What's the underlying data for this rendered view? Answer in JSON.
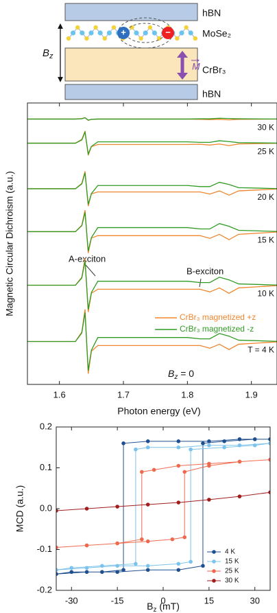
{
  "diagram": {
    "layers": [
      "hBN",
      "MoSe₂",
      "CrBr₃",
      "hBN"
    ],
    "field": {
      "base": "B",
      "sub": "z"
    },
    "magnetization": "M",
    "charges": [
      "+",
      "−"
    ]
  },
  "chart_data": [
    {
      "type": "line",
      "xlabel": "Photon energy (eV)",
      "ylabel": "Magnetic Circular Dichroism (a.u.)",
      "xlim": [
        1.55,
        1.94
      ],
      "ylim": [
        -0.5,
        10
      ],
      "xticks": [
        1.6,
        1.7,
        1.8,
        1.9
      ],
      "x": [
        1.55,
        1.6,
        1.625,
        1.635,
        1.64,
        1.645,
        1.65,
        1.66,
        1.7,
        1.75,
        1.8,
        1.82,
        1.835,
        1.85,
        1.865,
        1.88,
        1.95
      ],
      "curve_labels": [
        "30 K",
        "25 K",
        "20 K",
        "15 K",
        "10 K",
        "T = 4 K"
      ],
      "annotations": [
        "A-exciton",
        "B-exciton"
      ],
      "condition": {
        "base": "B",
        "sub": "z",
        "rest": " = 0"
      },
      "series": [
        {
          "name": "CrBr₃ magnetized +z",
          "color": "#f0862e",
          "curves": [
            [
              9.4,
              9.4,
              9.4,
              9.42,
              9.45,
              9.35,
              9.39,
              9.4,
              9.4,
              9.4,
              9.4,
              9.39,
              9.38,
              9.39,
              9.37,
              9.39,
              9.4
            ],
            [
              8.5,
              8.5,
              8.5,
              8.64,
              8.95,
              8.05,
              8.37,
              8.45,
              8.45,
              8.45,
              8.45,
              8.46,
              8.43,
              8.47,
              8.41,
              8.47,
              8.5
            ],
            [
              6.8,
              6.8,
              6.8,
              7.0,
              7.45,
              6.15,
              6.61,
              6.68,
              6.68,
              6.68,
              6.68,
              6.68,
              6.6,
              6.72,
              6.56,
              6.72,
              6.8
            ],
            [
              5.2,
              5.2,
              5.2,
              5.44,
              6.0,
              4.4,
              4.96,
              5.05,
              5.05,
              5.05,
              5.05,
              5.05,
              4.95,
              5.1,
              4.9,
              5.1,
              5.2
            ],
            [
              3.2,
              3.2,
              3.2,
              3.5,
              4.2,
              2.2,
              2.9,
              3.05,
              3.05,
              3.05,
              3.05,
              3.05,
              2.95,
              3.1,
              2.9,
              3.1,
              3.2
            ],
            [
              1.1,
              1.1,
              1.1,
              1.46,
              2.3,
              -0.1,
              0.74,
              0.95,
              0.95,
              0.95,
              0.95,
              0.95,
              0.85,
              1.0,
              0.8,
              1.0,
              1.1
            ]
          ]
        },
        {
          "name": "CrBr₃ magnetized -z",
          "color": "#2f9a22",
          "curves": [
            [
              9.4,
              9.4,
              9.4,
              9.41,
              9.45,
              9.36,
              9.39,
              9.4,
              9.4,
              9.4,
              9.4,
              9.41,
              9.41,
              9.43,
              9.42,
              9.41,
              9.4
            ],
            [
              8.5,
              8.5,
              8.5,
              8.62,
              8.91,
              8.1,
              8.38,
              8.55,
              8.55,
              8.55,
              8.55,
              8.53,
              8.53,
              8.59,
              8.56,
              8.52,
              8.5
            ],
            [
              6.8,
              6.8,
              6.8,
              6.98,
              7.39,
              6.22,
              6.62,
              6.92,
              6.92,
              6.92,
              6.92,
              6.88,
              6.88,
              7.04,
              6.96,
              6.84,
              6.8
            ],
            [
              5.2,
              5.2,
              5.2,
              5.42,
              5.92,
              4.48,
              4.98,
              5.35,
              5.35,
              5.35,
              5.35,
              5.3,
              5.3,
              5.5,
              5.4,
              5.25,
              5.2
            ],
            [
              3.2,
              3.2,
              3.2,
              3.47,
              4.1,
              2.3,
              2.93,
              3.35,
              3.35,
              3.35,
              3.35,
              3.3,
              3.3,
              3.5,
              3.4,
              3.25,
              3.2
            ],
            [
              1.1,
              1.1,
              1.1,
              1.42,
              2.18,
              0.02,
              0.78,
              1.25,
              1.25,
              1.25,
              1.25,
              1.2,
              1.2,
              1.4,
              1.3,
              1.15,
              1.1
            ]
          ]
        }
      ]
    },
    {
      "type": "line",
      "markers": true,
      "xlabel": {
        "base": "B",
        "sub": "z",
        "rest": " (mT)"
      },
      "ylabel": "MCD (a.u.)",
      "xlim": [
        -35,
        35
      ],
      "ylim": [
        -0.2,
        0.2
      ],
      "xticks": [
        -30,
        -15,
        0,
        15,
        30
      ],
      "yticks": [
        -0.2,
        -0.1,
        {
          "value": 0,
          "label": "0.0"
        },
        0.1,
        0.2
      ],
      "legend": "lower right",
      "series": [
        {
          "name": "4 K",
          "color": "#1f4f8f",
          "x": [
            35,
            25,
            15,
            5,
            -5,
            -13,
            -13,
            -20,
            -30,
            -35,
            -35,
            -25,
            -15,
            -5,
            5,
            13,
            13,
            20,
            30,
            35
          ],
          "values": [
            0.17,
            0.17,
            0.165,
            0.165,
            0.165,
            0.16,
            -0.15,
            -0.155,
            -0.155,
            -0.16,
            -0.16,
            -0.155,
            -0.155,
            -0.15,
            -0.15,
            -0.14,
            0.16,
            0.165,
            0.17,
            0.17
          ]
        },
        {
          "name": "15 K",
          "color": "#7cc3ec",
          "x": [
            35,
            25,
            15,
            5,
            -5,
            -9,
            -9,
            -20,
            -30,
            -35,
            -35,
            -25,
            -15,
            -5,
            5,
            9,
            9,
            20,
            30,
            35
          ],
          "values": [
            0.16,
            0.155,
            0.155,
            0.15,
            0.15,
            0.145,
            -0.135,
            -0.14,
            -0.145,
            -0.15,
            -0.15,
            -0.145,
            -0.14,
            -0.14,
            -0.135,
            -0.13,
            0.145,
            0.15,
            0.155,
            0.16
          ]
        },
        {
          "name": "25 K",
          "color": "#ee6a4f",
          "x": [
            35,
            25,
            15,
            5,
            -3,
            -7,
            -7,
            -15,
            -25,
            -35,
            -35,
            -25,
            -15,
            -5,
            3,
            7,
            7,
            15,
            25,
            35
          ],
          "values": [
            0.12,
            0.115,
            0.11,
            0.105,
            0.095,
            0.09,
            -0.075,
            -0.085,
            -0.09,
            -0.095,
            -0.095,
            -0.09,
            -0.085,
            -0.08,
            -0.075,
            -0.07,
            0.09,
            0.105,
            0.115,
            0.12
          ]
        },
        {
          "name": "30 K",
          "color": "#a11d1d",
          "x": [
            -35,
            -25,
            -15,
            -5,
            5,
            15,
            25,
            35
          ],
          "values": [
            -0.005,
            0.0,
            0.005,
            0.01,
            0.015,
            0.022,
            0.03,
            0.04
          ]
        }
      ]
    }
  ]
}
